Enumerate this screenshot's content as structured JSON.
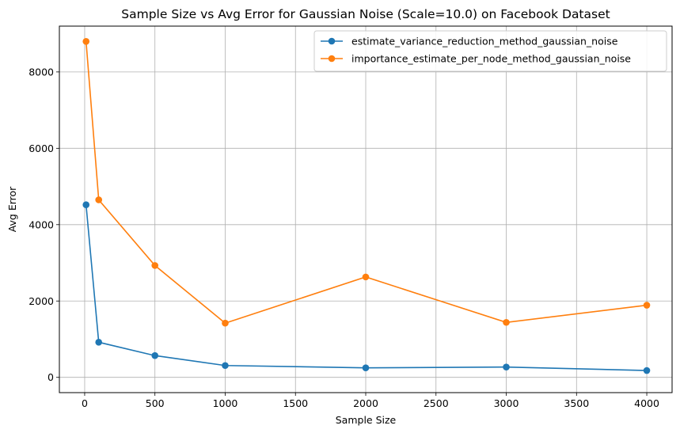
{
  "chart_data": {
    "type": "line",
    "title": "Sample Size vs Avg Error for Gaussian Noise (Scale=10.0) on Facebook Dataset",
    "xlabel": "Sample Size",
    "ylabel": "Avg Error",
    "xlim": [
      -180,
      4180
    ],
    "ylim": [
      -400,
      9200
    ],
    "xticks": [
      0,
      500,
      1000,
      1500,
      2000,
      2500,
      3000,
      3500,
      4000
    ],
    "yticks": [
      0,
      2000,
      4000,
      6000,
      8000
    ],
    "grid": true,
    "legend_position": "top-right",
    "series": [
      {
        "name": "estimate_variance_reduction_method_gaussian_noise",
        "color": "#1f77b4",
        "x": [
          10,
          100,
          500,
          1000,
          2000,
          3000,
          4000
        ],
        "y": [
          4520,
          920,
          570,
          310,
          250,
          270,
          180
        ]
      },
      {
        "name": "importance_estimate_per_node_method_gaussian_noise",
        "color": "#ff7f0e",
        "x": [
          10,
          100,
          500,
          1000,
          2000,
          3000,
          4000
        ],
        "y": [
          8800,
          4650,
          2930,
          1420,
          2630,
          1440,
          1890
        ]
      }
    ]
  }
}
